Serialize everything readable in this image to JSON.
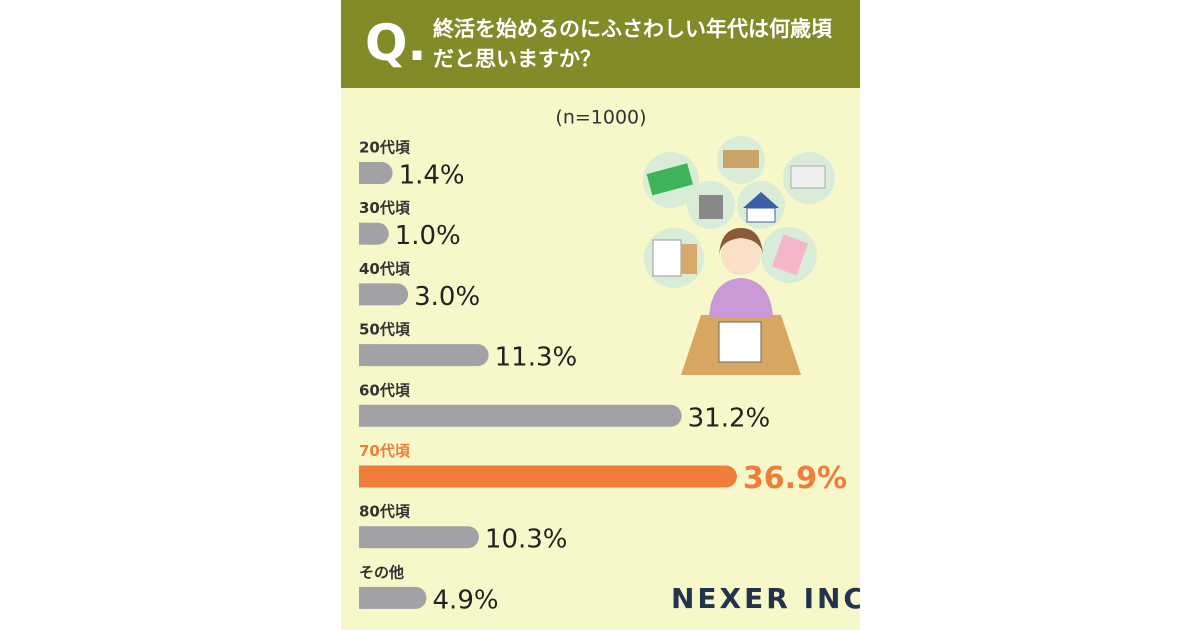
{
  "chart_data": {
    "type": "bar",
    "orientation": "horizontal",
    "title_prefix": "Q.",
    "title": "終活を始めるのにふさわしい年代は何歳頃だと思いますか？",
    "subtitle": "(n=1000)",
    "categories": [
      "20代頃",
      "30代頃",
      "40代頃",
      "50代頃",
      "60代頃",
      "70代頃",
      "80代頃",
      "その他"
    ],
    "values": [
      1.4,
      1.0,
      3.0,
      11.3,
      31.2,
      36.9,
      10.3,
      4.9
    ],
    "value_labels": [
      "1.4%",
      "1.0%",
      "3.0%",
      "11.3%",
      "31.2%",
      "36.9%",
      "10.3%",
      "4.9%"
    ],
    "colors": [
      "#a2a2a6",
      "#a2a2a6",
      "#a2a2a6",
      "#a2a2a6",
      "#a2a2a6",
      "#ef7d3b",
      "#a2a2a6",
      "#a2a2a6"
    ],
    "highlight_color": "#ef7d3b",
    "brand": "NEXER INC."
  }
}
